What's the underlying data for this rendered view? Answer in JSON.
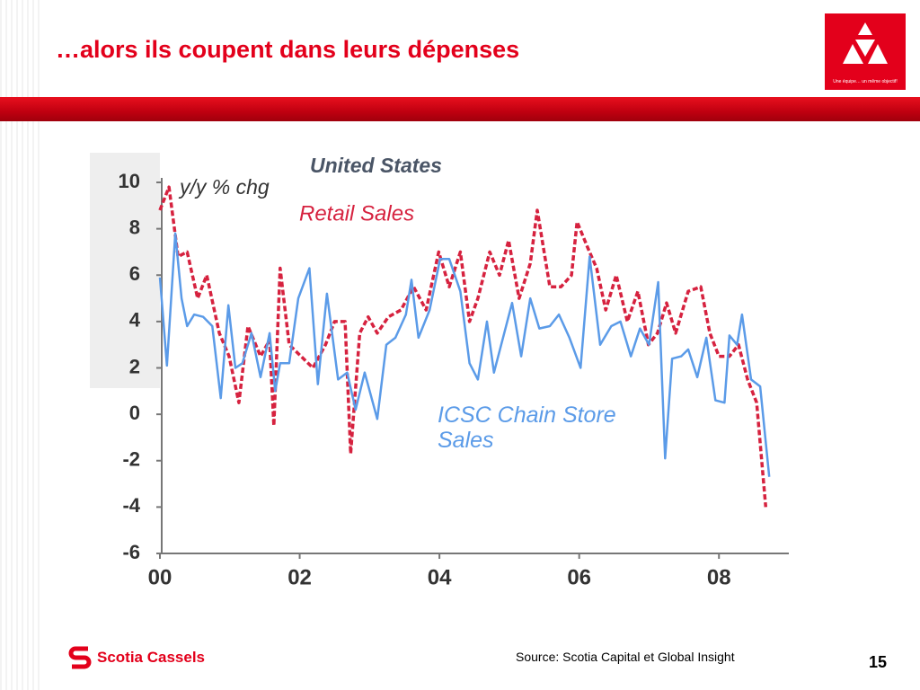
{
  "slide": {
    "title": "…alors ils coupent dans leurs dépenses",
    "logo_tagline": "Une équipe… un même objectif!",
    "brand": "Scotia Cassels",
    "source": "Source: Scotia Capital et Global Insight",
    "page_number": 15
  },
  "chart_data": {
    "type": "line",
    "title": "United States",
    "y_label": "y/y % chg",
    "xlim": [
      2000,
      2009
    ],
    "ylim": [
      -6,
      10
    ],
    "xticks": [
      {
        "value": 2000,
        "label": "00"
      },
      {
        "value": 2002,
        "label": "02"
      },
      {
        "value": 2004,
        "label": "04"
      },
      {
        "value": 2006,
        "label": "06"
      },
      {
        "value": 2008,
        "label": "08"
      }
    ],
    "yticks": [
      -6,
      -4,
      -2,
      0,
      2,
      4,
      6,
      8,
      10
    ],
    "series": [
      {
        "name": "Retail Sales",
        "color": "#d6223f",
        "style": "dashed",
        "x": [
          2000,
          2000.13,
          2000.26,
          2000.39,
          2000.54,
          2000.67,
          2000.85,
          2000.99,
          2001.13,
          2001.26,
          2001.44,
          2001.57,
          2001.63,
          2001.72,
          2001.85,
          2002.02,
          2002.19,
          2002.37,
          2002.5,
          2002.65,
          2002.73,
          2002.86,
          2002.98,
          2003.11,
          2003.27,
          2003.45,
          2003.63,
          2003.81,
          2003.99,
          2004.14,
          2004.3,
          2004.43,
          2004.55,
          2004.72,
          2004.86,
          2004.99,
          2005.14,
          2005.3,
          2005.4,
          2005.58,
          2005.74,
          2005.89,
          2005.97,
          2006.12,
          2006.25,
          2006.38,
          2006.53,
          2006.69,
          2006.84,
          2006.99,
          2007.12,
          2007.25,
          2007.38,
          2007.56,
          2007.74,
          2007.87,
          2008,
          2008.15,
          2008.28,
          2008.41,
          2008.54,
          2008.67
        ],
        "values": [
          8.8,
          9.8,
          6.8,
          7.0,
          5.0,
          6.0,
          3.5,
          2.5,
          0.5,
          3.8,
          2.5,
          3.2,
          -0.5,
          6.3,
          3.0,
          2.5,
          2.0,
          3.0,
          4.0,
          4.0,
          -1.7,
          3.5,
          4.2,
          3.5,
          4.2,
          4.5,
          5.5,
          4.5,
          7.0,
          5.5,
          7.0,
          4.0,
          5.0,
          7.0,
          6.0,
          7.5,
          5.0,
          6.5,
          8.8,
          5.5,
          5.5,
          6.0,
          8.3,
          7.2,
          6.3,
          4.5,
          6.0,
          4.0,
          5.3,
          3.0,
          3.5,
          4.8,
          3.5,
          5.3,
          5.5,
          3.5,
          2.5,
          2.5,
          3.0,
          1.5,
          0.5,
          -4.0
        ]
      },
      {
        "name": "ICSC Chain Store Sales",
        "color": "#5b9be8",
        "style": "solid",
        "x": [
          2000,
          2000.1,
          2000.22,
          2000.31,
          2000.39,
          2000.49,
          2000.62,
          2000.75,
          2000.87,
          2000.98,
          2001.08,
          2001.18,
          2001.31,
          2001.44,
          2001.57,
          2001.65,
          2001.72,
          2001.85,
          2001.98,
          2002.14,
          2002.26,
          2002.39,
          2002.55,
          2002.68,
          2002.8,
          2002.93,
          2003.11,
          2003.24,
          2003.37,
          2003.52,
          2003.6,
          2003.7,
          2003.86,
          2004.01,
          2004.14,
          2004.3,
          2004.43,
          2004.55,
          2004.68,
          2004.78,
          2004.91,
          2005.04,
          2005.17,
          2005.3,
          2005.43,
          2005.58,
          2005.71,
          2005.86,
          2006.02,
          2006.15,
          2006.3,
          2006.46,
          2006.59,
          2006.74,
          2006.87,
          2007,
          2007.13,
          2007.23,
          2007.33,
          2007.46,
          2007.56,
          2007.69,
          2007.82,
          2007.95,
          2008.08,
          2008.15,
          2008.26,
          2008.33,
          2008.46,
          2008.59,
          2008.72
        ],
        "values": [
          5.9,
          2.1,
          7.8,
          5.0,
          3.8,
          4.3,
          4.2,
          3.8,
          0.7,
          4.7,
          2.0,
          2.2,
          3.5,
          1.6,
          3.5,
          1.0,
          2.2,
          2.2,
          5.0,
          6.3,
          1.3,
          5.2,
          1.5,
          1.8,
          0.2,
          1.8,
          -0.2,
          3.0,
          3.3,
          4.3,
          5.8,
          3.3,
          4.5,
          6.7,
          6.7,
          5.3,
          2.2,
          1.5,
          4.0,
          1.8,
          3.3,
          4.8,
          2.5,
          5.0,
          3.7,
          3.8,
          4.3,
          3.3,
          2.0,
          6.8,
          3.0,
          3.8,
          4.0,
          2.5,
          3.7,
          3.0,
          5.7,
          -1.9,
          2.4,
          2.5,
          2.8,
          1.6,
          3.3,
          0.6,
          0.5,
          3.4,
          3.0,
          4.3,
          1.5,
          1.2,
          -2.7
        ]
      }
    ]
  }
}
